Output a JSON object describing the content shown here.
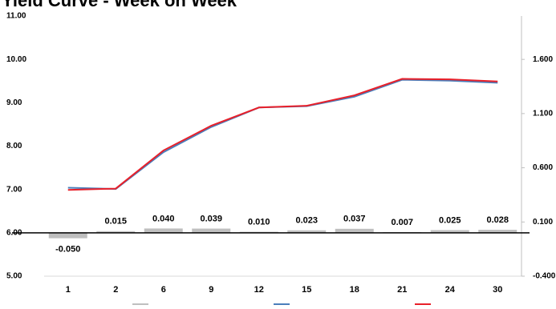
{
  "chart_data": {
    "type": "bar-line",
    "title": "Yield Curve - Week on Week",
    "categories": [
      "1",
      "2",
      "6",
      "9",
      "12",
      "15",
      "18",
      "21",
      "24",
      "30"
    ],
    "series": [
      {
        "color": "#bfbfbf",
        "axis": "y2",
        "values": [
          -0.05,
          0.015,
          0.04,
          0.039,
          0.01,
          0.023,
          0.037,
          0.007,
          0.025,
          0.028
        ],
        "value_labels": [
          "-0.050",
          "0.015",
          "0.040",
          "0.039",
          "0.010",
          "0.023",
          "0.037",
          "0.007",
          "0.025",
          "0.028"
        ]
      },
      {
        "color": "#4a7ebb",
        "values": [
          7.04,
          7.01,
          7.86,
          8.44,
          8.89,
          8.92,
          9.14,
          9.53,
          9.51,
          9.46
        ]
      },
      {
        "color": "#e8202a",
        "values": [
          6.99,
          7.02,
          7.9,
          8.47,
          8.89,
          8.93,
          9.17,
          9.55,
          9.54,
          9.49
        ]
      }
    ],
    "ylim": [
      5,
      11
    ],
    "yticks": [
      {
        "value": 5,
        "label": "5.00"
      },
      {
        "value": 6,
        "label": "6.00"
      },
      {
        "value": 7,
        "label": "7.00"
      },
      {
        "value": 8,
        "label": "8.00"
      },
      {
        "value": 9,
        "label": "9.00"
      },
      {
        "value": 10,
        "label": "10.00"
      },
      {
        "value": 11,
        "label": "11.00"
      }
    ],
    "y2lim": [
      -0.4,
      2.0
    ],
    "y2ticks": [
      {
        "value": -0.4,
        "label": "-0.400"
      },
      {
        "value": 0.1,
        "label": "0.100"
      },
      {
        "value": 0.6,
        "label": "0.600"
      },
      {
        "value": 1.1,
        "label": "1.100"
      },
      {
        "value": 1.6,
        "label": "1.600"
      }
    ]
  }
}
